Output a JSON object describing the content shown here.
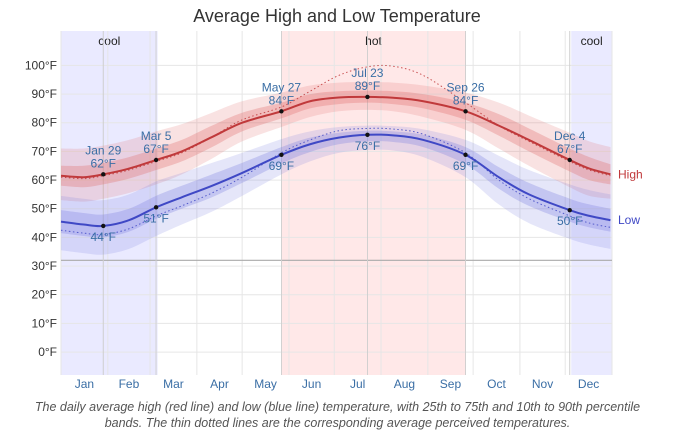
{
  "chart_data": {
    "type": "line",
    "title": "Average High and Low Temperature",
    "x_domain": [
      0,
      365
    ],
    "months": [
      {
        "label": "Jan",
        "day": 15.5
      },
      {
        "label": "Feb",
        "day": 45
      },
      {
        "label": "Mar",
        "day": 74.5
      },
      {
        "label": "Apr",
        "day": 105
      },
      {
        "label": "May",
        "day": 135.5
      },
      {
        "label": "Jun",
        "day": 166
      },
      {
        "label": "Jul",
        "day": 196.5
      },
      {
        "label": "Aug",
        "day": 227.5
      },
      {
        "label": "Sep",
        "day": 258
      },
      {
        "label": "Oct",
        "day": 288.5
      },
      {
        "label": "Nov",
        "day": 319
      },
      {
        "label": "Dec",
        "day": 349.5
      }
    ],
    "month_boundaries": [
      0,
      31,
      59,
      90,
      120,
      151,
      181,
      212,
      243,
      273,
      304,
      334,
      365
    ],
    "y_axis": {
      "min": -8,
      "max": 112,
      "ticks": [
        0,
        10,
        20,
        30,
        40,
        50,
        60,
        70,
        80,
        90,
        100
      ],
      "tick_labels": [
        "0°F",
        "10°F",
        "20°F",
        "30°F",
        "40°F",
        "50°F",
        "60°F",
        "70°F",
        "80°F",
        "90°F",
        "100°F"
      ],
      "reference_line": 32
    },
    "seasons": [
      {
        "label": "cool",
        "start": 0,
        "end": 64,
        "color": "#eaeaff"
      },
      {
        "label": "hot",
        "start": 146,
        "end": 268,
        "color": "#ffe8e8"
      },
      {
        "label": "cool",
        "start": 338,
        "end": 365,
        "color": "#eaeaff"
      }
    ],
    "series": [
      {
        "name": "High",
        "color": "#c0393b",
        "band_color": "#e06d6e",
        "x": [
          0,
          15,
          28,
          45,
          63,
          80,
          100,
          120,
          146,
          165,
          184,
          203,
          220,
          240,
          268,
          290,
          310,
          337,
          350,
          364
        ],
        "y": [
          61.5,
          61,
          62,
          64,
          67,
          70,
          75,
          80,
          84,
          87.5,
          88.8,
          89,
          88.7,
          87.5,
          84,
          79,
          74,
          67,
          64,
          62
        ],
        "p25": [
          58,
          57.5,
          58.5,
          60.5,
          63.5,
          66.5,
          71.5,
          77,
          81.5,
          85,
          86.5,
          87,
          86.5,
          85,
          81,
          75.5,
          70,
          63,
          60,
          58.5
        ],
        "p75": [
          65,
          65,
          66,
          68,
          71,
          74,
          79,
          83.5,
          87,
          90,
          91,
          91.2,
          91,
          90,
          87,
          83,
          78,
          71,
          68,
          65.5
        ],
        "p10": [
          53,
          52.5,
          53.5,
          55.5,
          58.5,
          62,
          67.5,
          73.5,
          78.5,
          82,
          84,
          84.5,
          84,
          82,
          77.5,
          71,
          65,
          57.5,
          54.5,
          53.5
        ],
        "p90": [
          71,
          71,
          72,
          74,
          77,
          79.5,
          83.5,
          87.5,
          90.5,
          93,
          94,
          94.2,
          94,
          93,
          90.5,
          87,
          82.5,
          76.5,
          73.5,
          71.5
        ],
        "feels": [
          61,
          60.5,
          61.5,
          63.5,
          66.5,
          69.5,
          75,
          81,
          85.5,
          91,
          96.5,
          99.5,
          99.7,
          96.5,
          87,
          79,
          73.5,
          66.5,
          63.5,
          61.5
        ],
        "label_y": 62,
        "end_label": "High"
      },
      {
        "name": "Low",
        "color": "#3f48c5",
        "band_color": "#7f84df",
        "x": [
          0,
          15,
          28,
          45,
          63,
          80,
          100,
          120,
          146,
          165,
          184,
          203,
          220,
          240,
          268,
          290,
          310,
          337,
          350,
          364
        ],
        "y": [
          45.5,
          44.5,
          44,
          46,
          50.5,
          54,
          58,
          62.5,
          68.8,
          72.5,
          74.8,
          75.8,
          75.6,
          74,
          68.8,
          61,
          55,
          49.5,
          47.5,
          46
        ],
        "p25": [
          41.5,
          40.5,
          40,
          42,
          46.5,
          50,
          54,
          59,
          65.8,
          69.8,
          72.5,
          73.5,
          73.3,
          71.5,
          65.5,
          57,
          51,
          45.5,
          43.5,
          42
        ],
        "p75": [
          49.5,
          48.5,
          48,
          50,
          54.5,
          58,
          62,
          66,
          71.5,
          74.8,
          76.5,
          77.2,
          77,
          75.8,
          71.5,
          64.5,
          59,
          53.5,
          51.5,
          50
        ],
        "p10": [
          35.5,
          34.5,
          34,
          36,
          40.5,
          44.5,
          49,
          54.5,
          62,
          66.5,
          69.5,
          70.5,
          70.3,
          68,
          61,
          51.5,
          45,
          39.5,
          37.5,
          36
        ],
        "p90": [
          54.5,
          53.5,
          53,
          55,
          59.5,
          62.5,
          66,
          69.5,
          74.3,
          77,
          78.5,
          79,
          78.8,
          77.7,
          74,
          68.5,
          63.5,
          58.5,
          56.5,
          55
        ],
        "feels": [
          42.5,
          41.5,
          41,
          43,
          47.5,
          51,
          55.5,
          61,
          69.5,
          74,
          77.2,
          78,
          77.8,
          76,
          69.5,
          60,
          53.5,
          47.5,
          45,
          43.5
        ],
        "label_y": 46,
        "end_label": "Low"
      }
    ],
    "annotations": [
      {
        "series": "High",
        "day": 28,
        "value": 62,
        "date": "Jan 29",
        "value_label": "62°F",
        "position": "above"
      },
      {
        "series": "High",
        "day": 63,
        "value": 67,
        "date": "Mar 5",
        "value_label": "67°F",
        "position": "above"
      },
      {
        "series": "High",
        "day": 146,
        "value": 84,
        "date": "May 27",
        "value_label": "84°F",
        "position": "above"
      },
      {
        "series": "High",
        "day": 203,
        "value": 89,
        "date": "Jul 23",
        "value_label": "89°F",
        "position": "above"
      },
      {
        "series": "High",
        "day": 268,
        "value": 84,
        "date": "Sep 26",
        "value_label": "84°F",
        "position": "above"
      },
      {
        "series": "High",
        "day": 337,
        "value": 67,
        "date": "Dec 4",
        "value_label": "67°F",
        "position": "above"
      },
      {
        "series": "Low",
        "day": 28,
        "value": 44,
        "date": "",
        "value_label": "44°F",
        "position": "below"
      },
      {
        "series": "Low",
        "day": 63,
        "value": 51,
        "date": "",
        "value_label": "51°F",
        "position": "below"
      },
      {
        "series": "Low",
        "day": 146,
        "value": 69,
        "date": "",
        "value_label": "69°F",
        "position": "below"
      },
      {
        "series": "Low",
        "day": 203,
        "value": 76,
        "date": "",
        "value_label": "76°F",
        "position": "below"
      },
      {
        "series": "Low",
        "day": 268,
        "value": 69,
        "date": "",
        "value_label": "69°F",
        "position": "below"
      },
      {
        "series": "Low",
        "day": 337,
        "value": 50,
        "date": "",
        "value_label": "50°F",
        "position": "below"
      }
    ],
    "grid": true
  },
  "caption": {
    "line1": "The daily average high (red line) and low (blue line) temperature, with 25th to 75th and 10th to 90th percentile",
    "line2": "bands. The thin dotted lines are the corresponding average perceived temperatures."
  },
  "colors": {
    "axis_text": "#333333",
    "month_text": "#3a6ea5",
    "annotation_text": "#3a6ea5",
    "grid": "#e6e6e6",
    "reference_line": "#aaaaaa"
  }
}
